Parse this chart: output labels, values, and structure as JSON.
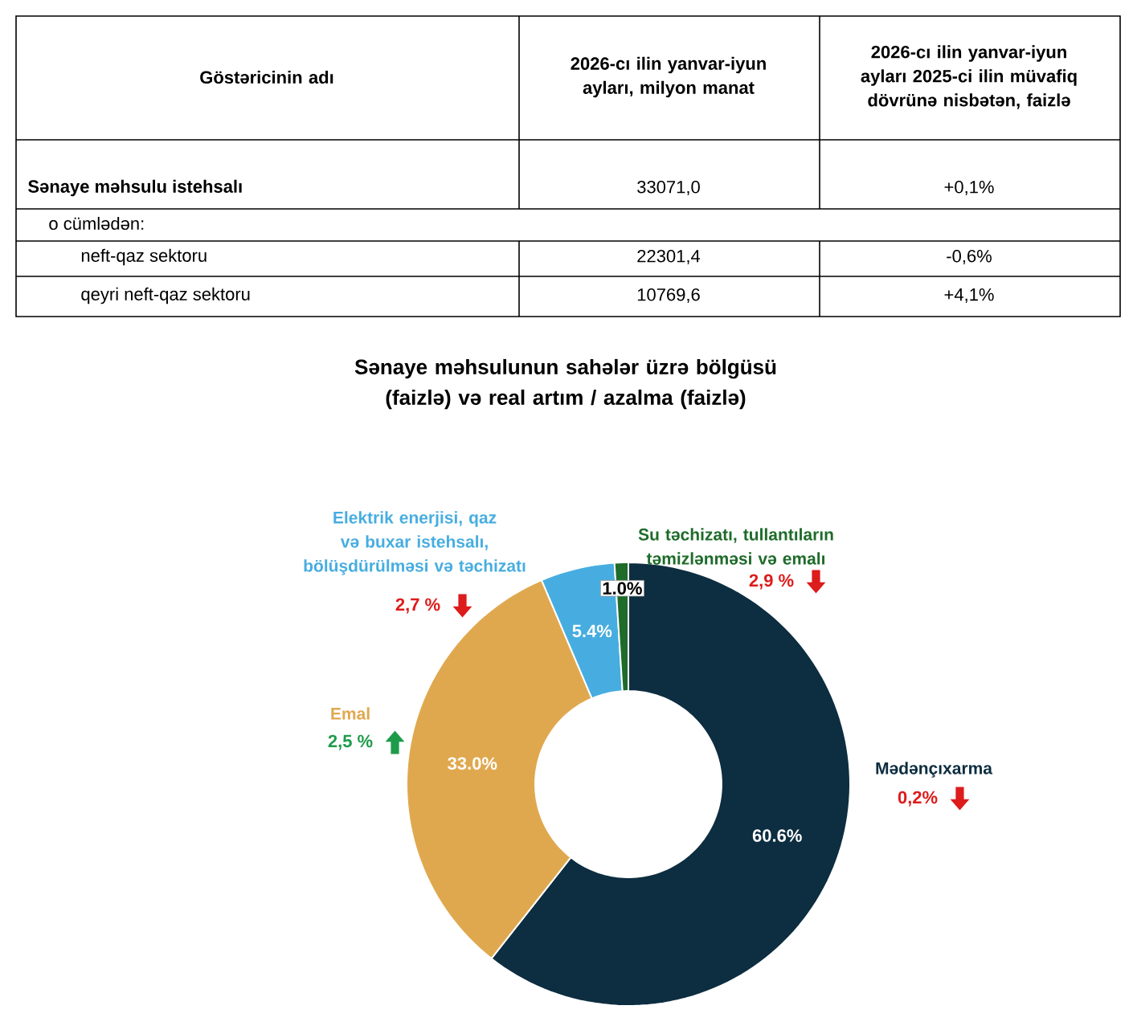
{
  "chart_data": [
    {
      "type": "other",
      "categories": [
        "Göstəricinin adı",
        "2026-cı ilin yanvar-iyun ayları, milyon manat",
        "2026-cı ilin yanvar-iyun ayları 2025-ci ilin müvafiq dövrünə nisbətən, faizlə"
      ],
      "y_categories": [
        "Sənaye məhsulu istehsalı",
        "o cümlədən:",
        "neft-qaz sektoru",
        "qeyri neft-qaz sektoru"
      ],
      "cell_labels": [
        [
          "33071,0",
          "+0,1%"
        ],
        [
          null,
          null
        ],
        [
          "22301,4",
          "-0,6%"
        ],
        [
          "10769,6",
          "+4,1%"
        ]
      ]
    },
    {
      "type": "donut",
      "title": "Sənaye məhsulunun sahələr üzrə bölgüsü (faizlə) və real artım / azalma (faizlə)",
      "categories": [
        "Mədənçıxarma",
        "Emal",
        "Elektrik enerjisi, qaz və buxar istehsalı, bölüşdürülməsi və təchizatı",
        "Su təchizatı, tullantıların təmizlənməsi və emalı"
      ],
      "values": [
        60.6,
        33.0,
        5.4,
        1.0
      ],
      "colors": [
        "#0d2d40",
        "#e0a84e",
        "#47ade0",
        "#1e6b2a"
      ],
      "value_labels": [
        "60.6%",
        "33.0%",
        "5.4%",
        "1.0%"
      ],
      "annotations": [
        "0,2%",
        "2,5 %",
        "2,7 %",
        "2,9 %"
      ]
    }
  ]
}
